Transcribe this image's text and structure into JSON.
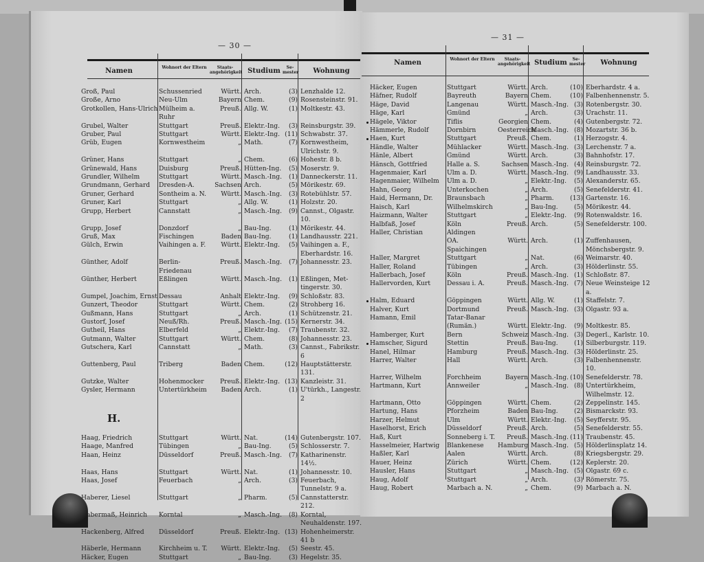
{
  "header": {
    "namen": "Namen",
    "wohnort": "Wohnort der Eltern",
    "staats": "Staats-angehörigkeit",
    "studium": "Studium",
    "semester": "Se-mester",
    "wohnung": "Wohnung"
  },
  "left_page": {
    "page_number": "— 30 —",
    "sections": [
      {
        "heading": "",
        "rows": [
          {
            "name": "Groß, Paul",
            "wohnort": "Schussenried",
            "staats": "Württ.",
            "studium": "Arch.",
            "sem": "(3)",
            "wohnung": "Lenzhalde 12."
          },
          {
            "name": "Große, Arno",
            "wohnort": "Neu-Ulm",
            "staats": "Bayern",
            "studium": "Chem.",
            "sem": "(9)",
            "wohnung": "Rosensteinstr. 91."
          },
          {
            "name": "Grotkollen, Hans-Ulrich",
            "wohnort": "Mülheim a. Ruhr",
            "staats": "Preuß.",
            "studium": "Allg. W.",
            "sem": "(1)",
            "wohnung": "Moltkestr. 43."
          },
          {
            "name": "Grubel, Walter",
            "wohnort": "Stuttgart",
            "staats": "Preuß.",
            "studium": "Elektr.-Ing.",
            "sem": "(3)",
            "wohnung": "Reinsburgstr. 39."
          },
          {
            "name": "Gruber, Paul",
            "wohnort": "Stuttgart",
            "staats": "Württ.",
            "studium": "Elektr.-Ing.",
            "sem": "(11)",
            "wohnung": "Schwabstr. 37."
          },
          {
            "name": "Grüb, Eugen",
            "wohnort": "Kornwestheim",
            "staats": "„",
            "studium": "Math.",
            "sem": "(7)",
            "wohnung": "Kornwestheim,\n   Ulrichstr. 9."
          },
          {
            "name": "Grüner, Hans",
            "wohnort": "Stuttgart",
            "staats": "„",
            "studium": "Chem.",
            "sem": "(6)",
            "wohnung": "Hohestr. 8 b."
          },
          {
            "name": "Grünewald, Hans",
            "wohnort": "Duisburg",
            "staats": "Preuß.",
            "studium": "Hütten-Ing.",
            "sem": "(5)",
            "wohnung": "Moserstr. 9."
          },
          {
            "name": "Grundler, Wilhelm",
            "wohnort": "Stuttgart",
            "staats": "Württ.",
            "studium": "Masch.-Ing.",
            "sem": "(1)",
            "wohnung": "Danneckerstr. 11."
          },
          {
            "name": "Grundmann, Gerhard",
            "wohnort": "Dresden-A.",
            "staats": "Sachsen",
            "studium": "Arch.",
            "sem": "(5)",
            "wohnung": "Mörikestr. 69."
          },
          {
            "name": "Gruner, Gerhard",
            "wohnort": "Sontheim a. N.",
            "staats": "Württ.",
            "studium": "Masch.-Ing.",
            "sem": "(3)",
            "wohnung": "Rotebühlstr. 57."
          },
          {
            "name": "Gruner, Karl",
            "wohnort": "Stuttgart",
            "staats": "„",
            "studium": "Allg. W.",
            "sem": "(1)",
            "wohnung": "Holzstr. 20."
          },
          {
            "name": "Grupp, Herbert",
            "wohnort": "Cannstatt",
            "staats": "„",
            "studium": "Masch.-Ing.",
            "sem": "(9)",
            "wohnung": "Cannst., Olgastr. 10."
          },
          {
            "name": "Grupp, Josef",
            "wohnort": "Donzdorf",
            "staats": "„",
            "studium": "Bau-Ing.",
            "sem": "(1)",
            "wohnung": "Mörikestr. 44."
          },
          {
            "name": "Gruß, Max",
            "wohnort": "Fischingen",
            "staats": "Baden",
            "studium": "Bau-Ing.",
            "sem": "(1)",
            "wohnung": "Landhausstr. 221."
          },
          {
            "name": "Gülch, Erwin",
            "wohnort": "Vaihingen a. F.",
            "staats": "Württ.",
            "studium": "Elektr.-Ing.",
            "sem": "(5)",
            "wohnung": "Vaihingen a. F.,\n   Eberhardstr. 16."
          },
          {
            "name": "Günther, Adolf",
            "wohnort": "Berlin-Friedenau",
            "staats": "Preuß.",
            "studium": "Masch.-Ing.",
            "sem": "(7)",
            "wohnung": "Johannesstr. 23."
          },
          {
            "name": "Günther, Herbert",
            "wohnort": "Eßlingen",
            "staats": "Württ.",
            "studium": "Masch.-Ing.",
            "sem": "(1)",
            "wohnung": "Eßlingen, Met-\n   tingerstr. 30."
          },
          {
            "name": "Gumpel, Joachim, Ernst",
            "wohnort": "Dessau",
            "staats": "Anhalt",
            "studium": "Elektr.-Ing.",
            "sem": "(9)",
            "wohnung": "Schloßstr. 83."
          },
          {
            "name": "Gunzert, Theodor",
            "wohnort": "Stuttgart",
            "staats": "Württ.",
            "studium": "Chem.",
            "sem": "(2)",
            "wohnung": "Strohberg 16."
          },
          {
            "name": "Gußmann, Hans",
            "wohnort": "Stuttgart",
            "staats": "„",
            "studium": "Arch.",
            "sem": "(1)",
            "wohnung": "Schützenstr. 21."
          },
          {
            "name": "Gustorf, Josef",
            "wohnort": "Neuß/Rh.",
            "staats": "Preuß.",
            "studium": "Masch.-Ing.",
            "sem": "(15)",
            "wohnung": "Kernerstr. 34."
          },
          {
            "name": "Gutheil, Hans",
            "wohnort": "Elberfeld",
            "staats": "„",
            "studium": "Elektr.-Ing.",
            "sem": "(7)",
            "wohnung": "Traubenstr. 32."
          },
          {
            "name": "Gutmann, Walter",
            "wohnort": "Stuttgart",
            "staats": "Württ.",
            "studium": "Chem.",
            "sem": "(8)",
            "wohnung": "Johannesstr. 23."
          },
          {
            "name": "Gutschera, Karl",
            "wohnort": "Cannstatt",
            "staats": "„",
            "studium": "Math.",
            "sem": "(3)",
            "wohnung": "Cannst., Fabrikstr. 6"
          },
          {
            "name": "Guttenberg, Paul",
            "wohnort": "Triberg",
            "staats": "Baden",
            "studium": "Chem.",
            "sem": "(12)",
            "wohnung": "Hauptstätterstr. 131."
          },
          {
            "name": "Gutzke, Walter",
            "wohnort": "Hohenmocker",
            "staats": "Preuß.",
            "studium": "Elektr.-Ing.",
            "sem": "(13)",
            "wohnung": "Kanzleistr. 31."
          },
          {
            "name": "Gysler, Hermann",
            "wohnort": "Untertürkheim",
            "staats": "Baden",
            "studium": "Arch.",
            "sem": "(1)",
            "wohnung": "U'türkh., Langestr. 2"
          }
        ]
      },
      {
        "heading": "H.",
        "rows": [
          {
            "name": "Haag, Friedrich",
            "wohnort": "Stuttgart",
            "staats": "Württ.",
            "studium": "Nat.",
            "sem": "(14)",
            "wohnung": "Gutenbergstr. 107."
          },
          {
            "name": "Haage, Manfred",
            "wohnort": "Tübingen",
            "staats": "„",
            "studium": "Bau-Ing.",
            "sem": "(5)",
            "wohnung": "Schlosserstr. 7."
          },
          {
            "name": "Haan, Heinz",
            "wohnort": "Düsseldorf",
            "staats": "Preuß.",
            "studium": "Masch.-Ing.",
            "sem": "(7)",
            "wohnung": "Katharinenstr. 14½."
          },
          {
            "name": "Haas, Hans",
            "wohnort": "Stuttgart",
            "staats": "Württ.",
            "studium": "Nat.",
            "sem": "(1)",
            "wohnung": "Johannesstr. 10."
          },
          {
            "name": "Haas, Josef",
            "wohnort": "Feuerbach",
            "staats": "„",
            "studium": "Arch.",
            "sem": "(3)",
            "wohnung": "Feuerbach,\n   Tunnelstr. 9 a."
          },
          {
            "name": "Haberer, Liesel",
            "wohnort": "Stuttgart",
            "staats": "„",
            "studium": "Pharm.",
            "sem": "(5)",
            "wohnung": "Cannstatterstr. 212."
          },
          {
            "name": "Habermaß, Heinrich",
            "wohnort": "Korntal",
            "staats": "„",
            "studium": "Masch.-Ing.",
            "sem": "(8)",
            "wohnung": "Korntal,\n   Neuhaldenstr. 197."
          },
          {
            "name": "Hackenberg, Alfred",
            "wohnort": "Düsseldorf",
            "staats": "Preuß.",
            "studium": "Elektr.-Ing.",
            "sem": "(13)",
            "wohnung": "Hohenheimerstr. 41 b"
          },
          {
            "name": "Häberle, Hermann",
            "wohnort": "Kirchheim u. T.",
            "staats": "Württ.",
            "studium": "Elektr.-Ing.",
            "sem": "(5)",
            "wohnung": "Seestr. 45."
          },
          {
            "name": "Häcker, Eugen",
            "wohnort": "Stuttgart",
            "staats": "„",
            "studium": "Bau-Ing.",
            "sem": "(3)",
            "wohnung": "Hegelstr. 35."
          }
        ]
      }
    ]
  },
  "right_page": {
    "page_number": "— 31 —",
    "sections": [
      {
        "heading": "",
        "rows": [
          {
            "name": "Häcker, Eugen",
            "wohnort": "Stuttgart",
            "staats": "Württ.",
            "studium": "Arch.",
            "sem": "(10)",
            "wohnung": "Eberhardstr. 4 a."
          },
          {
            "name": "Häfner, Rudolf",
            "wohnort": "Bayreuth",
            "staats": "Bayern",
            "studium": "Chem.",
            "sem": "(10)",
            "wohnung": "Falbenhennenstr. 5."
          },
          {
            "name": "Häge, David",
            "wohnort": "Langenau",
            "staats": "Württ.",
            "studium": "Masch.-Ing.",
            "sem": "(3)",
            "wohnung": "Rotenbergstr. 30."
          },
          {
            "name": "Häge, Karl",
            "wohnort": "Gmünd",
            "staats": "„",
            "studium": "Arch.",
            "sem": "(3)",
            "wohnung": "Urachstr. 11."
          },
          {
            "name": "Hägele, Viktor",
            "marked": true,
            "wohnort": "Tiflis",
            "staats": "Georgien",
            "studium": "Chem.",
            "sem": "(4)",
            "wohnung": "Gutenbergstr. 72."
          },
          {
            "name": "Hämmerle, Rudolf",
            "wohnort": "Dornbirn",
            "staats": "Oesterreich",
            "studium": "Masch.-Ing.",
            "sem": "(8)",
            "wohnung": "Mozartstr. 36 b."
          },
          {
            "name": "Haen, Kurt",
            "marked": true,
            "wohnort": "Stuttgart",
            "staats": "Preuß.",
            "studium": "Chem.",
            "sem": "(1)",
            "wohnung": "Herzogstr. 4."
          },
          {
            "name": "Händle, Walter",
            "wohnort": "Mühlacker",
            "staats": "Württ.",
            "studium": "Masch.-Ing.",
            "sem": "(3)",
            "wohnung": "Lerchenstr. 7 a."
          },
          {
            "name": "Hänle, Albert",
            "wohnort": "Gmünd",
            "staats": "Württ.",
            "studium": "Arch.",
            "sem": "(3)",
            "wohnung": "Bahnhofstr. 17."
          },
          {
            "name": "Hänsch, Gottfried",
            "wohnort": "Halle a. S.",
            "staats": "Sachsen",
            "studium": "Masch.-Ing.",
            "sem": "(4)",
            "wohnung": "Reinsburgstr. 72."
          },
          {
            "name": "Hagenmaier, Karl",
            "wohnort": "Ulm a. D.",
            "staats": "Württ.",
            "studium": "Masch.-Ing.",
            "sem": "(9)",
            "wohnung": "Landhausstr. 33."
          },
          {
            "name": "Hagenmaier, Wilhelm",
            "wohnort": "Ulm a. D.",
            "staats": "„",
            "studium": "Elektr.-Ing.",
            "sem": "(5)",
            "wohnung": "Alexanderstr. 65."
          },
          {
            "name": "Hahn, Georg",
            "wohnort": "Unterkochen",
            "staats": "„",
            "studium": "Arch.",
            "sem": "(5)",
            "wohnung": "Senefelderstr. 41."
          },
          {
            "name": "Haid, Hermann, Dr.",
            "wohnort": "Braunsbach",
            "staats": "„",
            "studium": "Pharm.",
            "sem": "(13)",
            "wohnung": "Gartenstr. 16."
          },
          {
            "name": "Haisch, Karl",
            "wohnort": "Wilhelmskirch",
            "staats": "„",
            "studium": "Bau-Ing.",
            "sem": "(5)",
            "wohnung": "Mörikestr. 44."
          },
          {
            "name": "Haizmann, Walter",
            "wohnort": "Stuttgart",
            "staats": "„",
            "studium": "Elektr.-Ing.",
            "sem": "(9)",
            "wohnung": "Rotenwaldstr. 16."
          },
          {
            "name": "Halbfaß, Josef",
            "wohnort": "Köln",
            "staats": "Preuß.",
            "studium": "Arch.",
            "sem": "(5)",
            "wohnung": "Senefelderstr. 100."
          },
          {
            "name": "Haller, Christian",
            "wohnort": "Aldingen\n   OA. Spaichingen",
            "staats": "Württ.",
            "studium": "Arch.",
            "sem": "(1)",
            "wohnung": "Zuffenhausen,\n   Mönchsbergstr. 9."
          },
          {
            "name": "Haller, Margret",
            "wohnort": "Stuttgart",
            "staats": "„",
            "studium": "Nat.",
            "sem": "(6)",
            "wohnung": "Weimarstr. 40."
          },
          {
            "name": "Haller, Roland",
            "wohnort": "Tübingen",
            "staats": "„",
            "studium": "Arch.",
            "sem": "(3)",
            "wohnung": "Hölderlinstr. 55."
          },
          {
            "name": "Hallerbach, Josef",
            "wohnort": "Köln",
            "staats": "Preuß.",
            "studium": "Masch.-Ing.",
            "sem": "(1)",
            "wohnung": "Schloßstr. 87."
          },
          {
            "name": "Hallervorden, Kurt",
            "wohnort": "Dessau i. A.",
            "staats": "Preuß.",
            "studium": "Masch.-Ing.",
            "sem": "(7)",
            "wohnung": "Neue Weinsteige 12 a."
          },
          {
            "name": "Halm, Eduard",
            "marked": true,
            "wohnort": "Göppingen",
            "staats": "Württ.",
            "studium": "Allg. W.",
            "sem": "(1)",
            "wohnung": "Staffelstr. 7."
          },
          {
            "name": "Halver, Kurt",
            "wohnort": "Dortmund",
            "staats": "Preuß.",
            "studium": "Masch.-Ing.",
            "sem": "(3)",
            "wohnung": "Olgastr. 93 a."
          },
          {
            "name": "Hamann, Emil",
            "wohnort": "Tatar-Banar\n   (Rumän.)",
            "staats": "Württ.",
            "studium": "Elektr.-Ing.",
            "sem": "(9)",
            "wohnung": "Moltkestr. 85."
          },
          {
            "name": "Hamberger, Kurt",
            "wohnort": "Bern",
            "staats": "Schweiz",
            "studium": "Masch.-Ing.",
            "sem": "(3)",
            "wohnung": "Degerl., Karlstr. 10."
          },
          {
            "name": "Hamscher, Sigurd",
            "marked": true,
            "wohnort": "Stettin",
            "staats": "Preuß.",
            "studium": "Bau-Ing.",
            "sem": "(1)",
            "wohnung": "Silberburgstr. 119."
          },
          {
            "name": "Hanel, Hilmar",
            "wohnort": "Hamburg",
            "staats": "Preuß.",
            "studium": "Masch.-Ing.",
            "sem": "(3)",
            "wohnung": "Hölderlinstr. 25."
          },
          {
            "name": "Harrer, Walter",
            "wohnort": "Hall",
            "staats": "Württ.",
            "studium": "Arch.",
            "sem": "(3)",
            "wohnung": "Falbenhennenstr. 10."
          },
          {
            "name": "Harrer, Wilhelm",
            "wohnort": "Forchheim",
            "staats": "Bayern",
            "studium": "Masch.-Ing.",
            "sem": "(10)",
            "wohnung": "Senefelderstr. 78."
          },
          {
            "name": "Hartmann, Kurt",
            "wohnort": "Annweiler",
            "staats": "„",
            "studium": "Masch.-Ing.",
            "sem": "(8)",
            "wohnung": "Untertürkheim,\n   Wilhelmstr. 12."
          },
          {
            "name": "Hartmann, Otto",
            "wohnort": "Göppingen",
            "staats": "Württ.",
            "studium": "Chem.",
            "sem": "(2)",
            "wohnung": "Zeppelinstr. 145."
          },
          {
            "name": "Hartung, Hans",
            "wohnort": "Pforzheim",
            "staats": "Baden",
            "studium": "Bau-Ing.",
            "sem": "(2)",
            "wohnung": "Bismarckstr. 93."
          },
          {
            "name": "Harzer, Helmut",
            "wohnort": "Ulm",
            "staats": "Württ.",
            "studium": "Elektr.-Ing.",
            "sem": "(5)",
            "wohnung": "Seyfferstr. 95."
          },
          {
            "name": "Haselhorst, Erich",
            "wohnort": "Düsseldorf",
            "staats": "Preuß.",
            "studium": "Arch.",
            "sem": "(5)",
            "wohnung": "Senefelderstr. 55."
          },
          {
            "name": "Haß, Kurt",
            "wohnort": "Sonneberg i. T.",
            "staats": "Preuß.",
            "studium": "Masch.-Ing.",
            "sem": "(11)",
            "wohnung": "Traubenstr. 45."
          },
          {
            "name": "Hasselmeier, Hartwig",
            "wohnort": "Blankenese",
            "staats": "Hamburg",
            "studium": "Masch.-Ing.",
            "sem": "(5)",
            "wohnung": "Hölderlinsplatz 14."
          },
          {
            "name": "Haßler, Karl",
            "wohnort": "Aalen",
            "staats": "Württ.",
            "studium": "Arch.",
            "sem": "(8)",
            "wohnung": "Kriegsbergstr. 29."
          },
          {
            "name": "Hauer, Heinz",
            "wohnort": "Zürich",
            "staats": "Württ.",
            "studium": "Chem.",
            "sem": "(12)",
            "wohnung": "Keplerstr. 20."
          },
          {
            "name": "Hausler, Hans",
            "wohnort": "Stuttgart",
            "staats": "„",
            "studium": "Masch.-Ing.",
            "sem": "(5)",
            "wohnung": "Olgastr. 69 c."
          },
          {
            "name": "Haug, Adolf",
            "wohnort": "Stuttgart",
            "staats": "„",
            "studium": "Arch.",
            "sem": "(3)",
            "wohnung": "Römerstr. 75."
          },
          {
            "name": "Haug, Robert",
            "wohnort": "Marbach a. N.",
            "staats": "„",
            "studium": "Chem.",
            "sem": "(9)",
            "wohnung": "Marbach a. N."
          }
        ]
      }
    ]
  }
}
